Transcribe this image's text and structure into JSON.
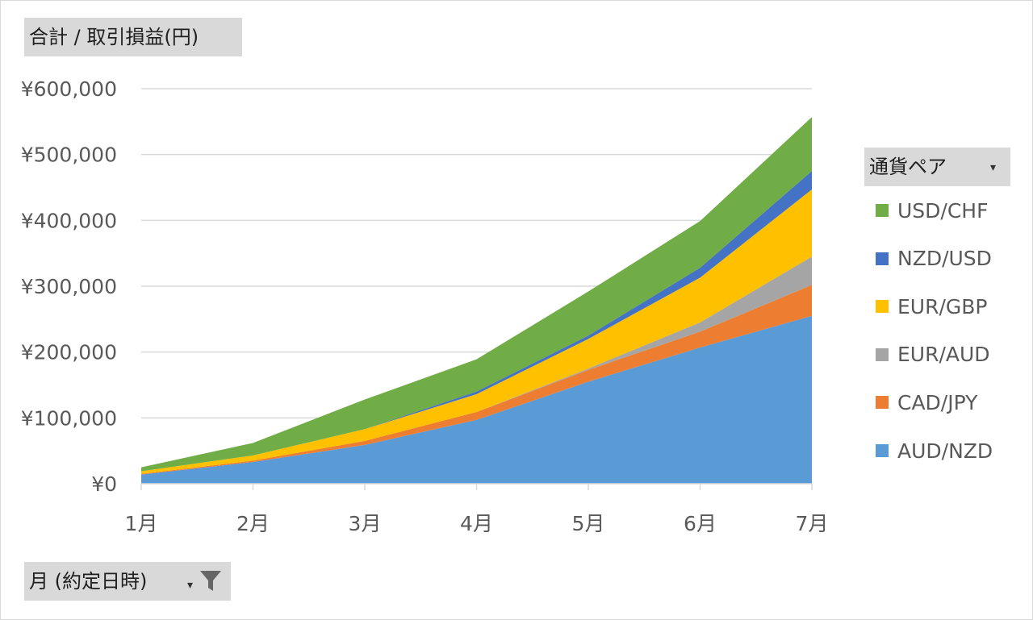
{
  "pivot": {
    "value_field_label": "合計 / 取引損益(円)",
    "axis_field_label": "月 (約定日時)",
    "legend_field_label": "通貨ペア",
    "dropdown_glyph": "▾"
  },
  "colors": {
    "AUD/NZD": "#5b9bd5",
    "CAD/JPY": "#ed7d31",
    "EUR/AUD": "#a5a5a5",
    "EUR/GBP": "#ffc000",
    "NZD/USD": "#4472c4",
    "USD/CHF": "#70ad47"
  },
  "chart_data": {
    "type": "area",
    "stacked": true,
    "categories": [
      "1月",
      "2月",
      "3月",
      "4月",
      "5月",
      "6月",
      "7月"
    ],
    "series": [
      {
        "name": "AUD/NZD",
        "values": [
          14000,
          33000,
          59000,
          97000,
          155000,
          207000,
          255000
        ]
      },
      {
        "name": "CAD/JPY",
        "values": [
          1000,
          2000,
          6000,
          12000,
          18000,
          24000,
          47000
        ]
      },
      {
        "name": "EUR/AUD",
        "values": [
          0,
          0,
          0,
          0,
          2000,
          14000,
          43000
        ]
      },
      {
        "name": "EUR/GBP",
        "values": [
          4000,
          8000,
          18000,
          27000,
          45000,
          68000,
          102000
        ]
      },
      {
        "name": "NZD/USD",
        "values": [
          0,
          0,
          0,
          4000,
          5000,
          15000,
          28000
        ]
      },
      {
        "name": "USD/CHF",
        "values": [
          6000,
          19000,
          45000,
          49000,
          67000,
          71000,
          82000
        ]
      }
    ],
    "legend_order": [
      "USD/CHF",
      "NZD/USD",
      "EUR/GBP",
      "EUR/AUD",
      "CAD/JPY",
      "AUD/NZD"
    ],
    "y_ticks": [
      "¥0",
      "¥100,000",
      "¥200,000",
      "¥300,000",
      "¥400,000",
      "¥500,000",
      "¥600,000"
    ],
    "ylim": [
      0,
      600000
    ],
    "grid": true,
    "legend_position": "right"
  }
}
